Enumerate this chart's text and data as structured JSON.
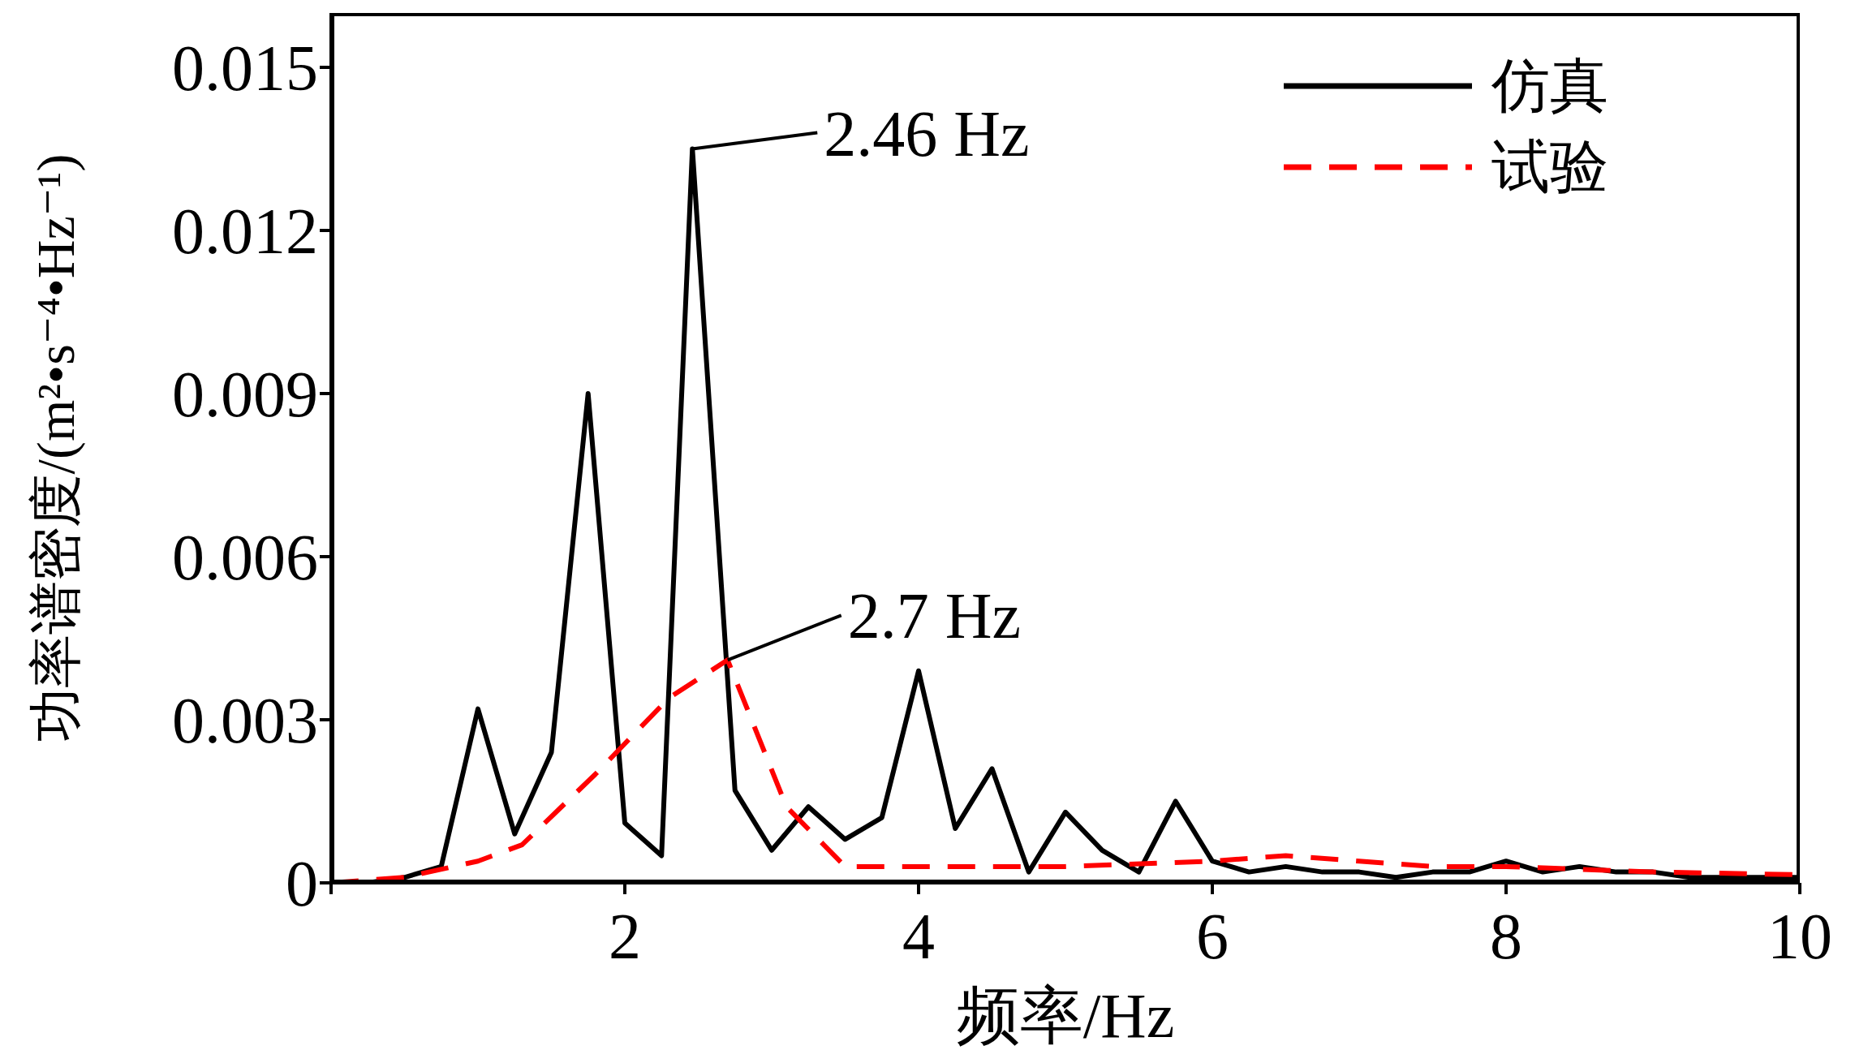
{
  "chart_data": {
    "type": "line",
    "xlabel": "频率/Hz",
    "ylabel": "功率谱密度/(m²•s⁻⁴•Hz⁻¹)",
    "xlim": [
      0,
      10
    ],
    "xticks": [
      {
        "value": 0,
        "label": null
      },
      2,
      4,
      6,
      8,
      10
    ],
    "ylim": [
      0,
      0.016
    ],
    "yticks": [
      0,
      0.003,
      0.006,
      0.009,
      0.012,
      0.015
    ],
    "grid": false,
    "legend": "top right",
    "annotations": [
      {
        "text": "2.46 Hz",
        "x": 2.46,
        "y": 0.0135
      },
      {
        "text": "2.7 Hz",
        "x": 2.7,
        "y": 0.0041
      }
    ],
    "series": [
      {
        "name": "仿真",
        "color": "#000000",
        "line_style": "solid",
        "x": [
          0,
          0.25,
          0.5,
          0.75,
          1.0,
          1.25,
          1.5,
          1.75,
          2.0,
          2.25,
          2.46,
          2.75,
          3.0,
          3.25,
          3.5,
          3.75,
          4.0,
          4.25,
          4.5,
          4.75,
          5.0,
          5.25,
          5.5,
          5.75,
          6.0,
          6.25,
          6.5,
          6.75,
          7.0,
          7.25,
          7.5,
          7.75,
          8.0,
          8.25,
          8.5,
          8.75,
          9.0,
          9.25,
          9.5,
          10
        ],
        "values": [
          0,
          0,
          0.0001,
          0.0003,
          0.0032,
          0.0009,
          0.0024,
          0.009,
          0.0011,
          0.0005,
          0.0135,
          0.0017,
          0.0006,
          0.0014,
          0.0008,
          0.0012,
          0.0039,
          0.001,
          0.0021,
          0.0002,
          0.0013,
          0.0006,
          0.0002,
          0.0015,
          0.0004,
          0.0002,
          0.0003,
          0.0002,
          0.0002,
          0.0001,
          0.0002,
          0.0002,
          0.0004,
          0.0002,
          0.0003,
          0.0002,
          0.0002,
          0.0001,
          0.0001,
          0.0001
        ]
      },
      {
        "name": "试验",
        "color": "#ff0000",
        "line_style": "dashed",
        "x": [
          0,
          0.5,
          1.0,
          1.3,
          1.8,
          2.3,
          2.7,
          3.1,
          3.5,
          4.0,
          5.0,
          6.0,
          6.5,
          7.0,
          7.5,
          8.0,
          9.0,
          10
        ],
        "values": [
          0,
          0.0001,
          0.0004,
          0.0007,
          0.002,
          0.0034,
          0.0041,
          0.0014,
          0.0003,
          0.0003,
          0.0003,
          0.0004,
          0.0005,
          0.0004,
          0.0003,
          0.0003,
          0.0002,
          0.00015
        ]
      }
    ]
  }
}
